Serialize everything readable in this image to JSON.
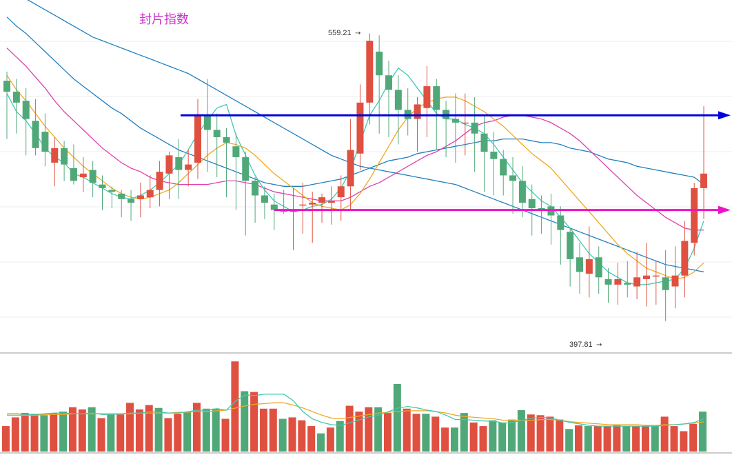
{
  "chart_data": {
    "type": "candlestick",
    "title": "封片指数",
    "high_label": "559.21",
    "low_label": "397.81",
    "y_range": [
      392,
      570
    ],
    "hlines": [
      {
        "value": 518,
        "color": "#0000dd"
      },
      {
        "value": 466,
        "color": "#ee11cc"
      }
    ],
    "colors": {
      "up": "#e05040",
      "down": "#50a878",
      "title": "#cc33cc",
      "ma5": "#40c8b0",
      "ma10": "#f0a820",
      "ma20": "#e040b0",
      "ma30": "#2080c0",
      "ma60": "#2080c0",
      "grid": "#eeeeee",
      "divider": "#999999"
    },
    "candles": [
      [
        537,
        531,
        542,
        505
      ],
      [
        531,
        525,
        538,
        508
      ],
      [
        526,
        516,
        533,
        496
      ],
      [
        515,
        500,
        527,
        496
      ],
      [
        509,
        498,
        519,
        490
      ],
      [
        492,
        500,
        506,
        479
      ],
      [
        500,
        491,
        504,
        482
      ],
      [
        489,
        482,
        502,
        480
      ],
      [
        484,
        486,
        495,
        476
      ],
      [
        488,
        481,
        493,
        473
      ],
      [
        480,
        478,
        485,
        466
      ],
      [
        477,
        476,
        479,
        467
      ],
      [
        475,
        472,
        477,
        462
      ],
      [
        472,
        470,
        477,
        460
      ],
      [
        472,
        474,
        481,
        462
      ],
      [
        473,
        477,
        485,
        467
      ],
      [
        477,
        487,
        493,
        468
      ],
      [
        486,
        496,
        498,
        472
      ],
      [
        495,
        488,
        505,
        472
      ],
      [
        488,
        491,
        499,
        479
      ],
      [
        492,
        518,
        527,
        483
      ],
      [
        518,
        510,
        538,
        487
      ],
      [
        510,
        506,
        519,
        484
      ],
      [
        506,
        503,
        511,
        473
      ],
      [
        501,
        495,
        508,
        466
      ],
      [
        495,
        482,
        498,
        452
      ],
      [
        482,
        474,
        484,
        459
      ],
      [
        474,
        470,
        479,
        461
      ],
      [
        469,
        466,
        475,
        455
      ],
      [
        466,
        465,
        477,
        464
      ],
      [
        465,
        466,
        478,
        444
      ],
      [
        469,
        469,
        481,
        453
      ],
      [
        469,
        470,
        476,
        448
      ],
      [
        470,
        473,
        475,
        459
      ],
      [
        470,
        471,
        479,
        458
      ],
      [
        473,
        479,
        485,
        460
      ],
      [
        479,
        499,
        516,
        466
      ],
      [
        497,
        525,
        535,
        488
      ],
      [
        525,
        559,
        563,
        513
      ],
      [
        553,
        540,
        562,
        508
      ],
      [
        540,
        532,
        548,
        506
      ],
      [
        532,
        521,
        540,
        502
      ],
      [
        521,
        516,
        533,
        507
      ],
      [
        516,
        524,
        528,
        498
      ],
      [
        522,
        534,
        545,
        506
      ],
      [
        534,
        521,
        538,
        499
      ],
      [
        521,
        516,
        526,
        495
      ],
      [
        516,
        514,
        530,
        492
      ],
      [
        514,
        514,
        530,
        496
      ],
      [
        514,
        508,
        528,
        487
      ],
      [
        508,
        498,
        518,
        476
      ],
      [
        498,
        494,
        509,
        474
      ],
      [
        494,
        485,
        499,
        474
      ],
      [
        485,
        482,
        495,
        464
      ],
      [
        482,
        470,
        490,
        462
      ],
      [
        472,
        467,
        480,
        452
      ],
      [
        467,
        466,
        474,
        453
      ],
      [
        468,
        463,
        475,
        447
      ],
      [
        463,
        455,
        468,
        436
      ],
      [
        454,
        439,
        456,
        424
      ],
      [
        440,
        432,
        448,
        420
      ],
      [
        431,
        439,
        457,
        418
      ],
      [
        440,
        429,
        446,
        420
      ],
      [
        428,
        425,
        434,
        415
      ],
      [
        425,
        428,
        437,
        414
      ],
      [
        426,
        425,
        438,
        418
      ],
      [
        424,
        429,
        443,
        417
      ],
      [
        428,
        430,
        448,
        413
      ],
      [
        430,
        430,
        438,
        414
      ],
      [
        429,
        422,
        444,
        405
      ],
      [
        424,
        430,
        446,
        412
      ],
      [
        430,
        449,
        460,
        418
      ],
      [
        448,
        478,
        481,
        441
      ],
      [
        478,
        486,
        523,
        461
      ]
    ],
    "vol": [
      {
        "v": 35,
        "up": true
      },
      {
        "v": 47,
        "up": true
      },
      {
        "v": 53,
        "up": true
      },
      {
        "v": 52,
        "up": true
      },
      {
        "v": 50,
        "up": false
      },
      {
        "v": 53,
        "up": true
      },
      {
        "v": 55,
        "up": false
      },
      {
        "v": 61,
        "up": true
      },
      {
        "v": 58,
        "up": true
      },
      {
        "v": 61,
        "up": false
      },
      {
        "v": 46,
        "up": true
      },
      {
        "v": 51,
        "up": false
      },
      {
        "v": 51,
        "up": true
      },
      {
        "v": 67,
        "up": true
      },
      {
        "v": 58,
        "up": true
      },
      {
        "v": 64,
        "up": true
      },
      {
        "v": 60,
        "up": false
      },
      {
        "v": 46,
        "up": true
      },
      {
        "v": 52,
        "up": true
      },
      {
        "v": 54,
        "up": false
      },
      {
        "v": 67,
        "up": true
      },
      {
        "v": 59,
        "up": false
      },
      {
        "v": 59,
        "up": false
      },
      {
        "v": 45,
        "up": true
      },
      {
        "v": 124,
        "up": true
      },
      {
        "v": 83,
        "up": false
      },
      {
        "v": 82,
        "up": true
      },
      {
        "v": 59,
        "up": true
      },
      {
        "v": 59,
        "up": true
      },
      {
        "v": 45,
        "up": false
      },
      {
        "v": 47,
        "up": true
      },
      {
        "v": 43,
        "up": true
      },
      {
        "v": 35,
        "up": true
      },
      {
        "v": 25,
        "up": false
      },
      {
        "v": 33,
        "up": true
      },
      {
        "v": 42,
        "up": false
      },
      {
        "v": 63,
        "up": true
      },
      {
        "v": 55,
        "up": true
      },
      {
        "v": 61,
        "up": true
      },
      {
        "v": 61,
        "up": false
      },
      {
        "v": 53,
        "up": true
      },
      {
        "v": 93,
        "up": false
      },
      {
        "v": 59,
        "up": true
      },
      {
        "v": 52,
        "up": true
      },
      {
        "v": 52,
        "up": false
      },
      {
        "v": 48,
        "up": true
      },
      {
        "v": 33,
        "up": true
      },
      {
        "v": 33,
        "up": false
      },
      {
        "v": 53,
        "up": false
      },
      {
        "v": 40,
        "up": true
      },
      {
        "v": 35,
        "up": true
      },
      {
        "v": 43,
        "up": false
      },
      {
        "v": 40,
        "up": false
      },
      {
        "v": 44,
        "up": false
      },
      {
        "v": 57,
        "up": false
      },
      {
        "v": 51,
        "up": true
      },
      {
        "v": 50,
        "up": true
      },
      {
        "v": 48,
        "up": true
      },
      {
        "v": 44,
        "up": true
      },
      {
        "v": 31,
        "up": false
      },
      {
        "v": 36,
        "up": true
      },
      {
        "v": 35,
        "up": false
      },
      {
        "v": 35,
        "up": true
      },
      {
        "v": 35,
        "up": true
      },
      {
        "v": 36,
        "up": true
      },
      {
        "v": 35,
        "up": false
      },
      {
        "v": 35,
        "up": true
      },
      {
        "v": 35,
        "up": true
      },
      {
        "v": 35,
        "up": false
      },
      {
        "v": 48,
        "up": true
      },
      {
        "v": 35,
        "up": true
      },
      {
        "v": 28,
        "up": true
      },
      {
        "v": 38,
        "up": true
      },
      {
        "v": 55,
        "up": false
      }
    ],
    "vol_range": [
      0,
      128
    ],
    "ma5": [
      530,
      520,
      515,
      508,
      500,
      495,
      492,
      486,
      484,
      481,
      478,
      475,
      473,
      472,
      474,
      477,
      481,
      486,
      491,
      499,
      508,
      515,
      522,
      524,
      507,
      496,
      485,
      477,
      471,
      468,
      465,
      466,
      468,
      469,
      472,
      478,
      488,
      503,
      518,
      526,
      536,
      544,
      540,
      533,
      526,
      519,
      516,
      516,
      513,
      511,
      508,
      502,
      495,
      488,
      481,
      476,
      471,
      468,
      462,
      456,
      449,
      442,
      437,
      432,
      429,
      426,
      425,
      425,
      426,
      427,
      428,
      434,
      445,
      460
    ],
    "ma10": [
      540,
      532,
      526,
      519,
      512,
      506,
      500,
      495,
      490,
      486,
      482,
      478,
      475,
      473,
      472,
      473,
      475,
      477,
      481,
      486,
      491,
      496,
      500,
      503,
      502,
      500,
      496,
      491,
      486,
      482,
      478,
      474,
      470,
      468,
      467,
      466,
      469,
      475,
      483,
      492,
      501,
      510,
      517,
      522,
      525,
      527,
      528,
      528,
      526,
      523,
      520,
      516,
      512,
      507,
      502,
      497,
      493,
      489,
      483,
      477,
      471,
      465,
      459,
      453,
      447,
      442,
      438,
      434,
      432,
      430,
      428,
      429,
      432,
      437
    ],
    "ma20": [
      555,
      550,
      545,
      539,
      533,
      526,
      520,
      515,
      510,
      505,
      500,
      496,
      492,
      489,
      487,
      484,
      482,
      481,
      480,
      480,
      480,
      480,
      481,
      482,
      482,
      481,
      480,
      478,
      476,
      475,
      474,
      473,
      472,
      471,
      471,
      471,
      473,
      476,
      479,
      481,
      484,
      487,
      490,
      493,
      496,
      498,
      501,
      504,
      508,
      512,
      514,
      515,
      517,
      518,
      518,
      517,
      516,
      514,
      511,
      508,
      504,
      499,
      494,
      489,
      484,
      479,
      474,
      470,
      466,
      462,
      459,
      456,
      455,
      455
    ],
    "ma30": [
      572,
      567,
      563,
      558,
      553,
      548,
      543,
      538,
      534,
      530,
      526,
      522,
      519,
      515,
      511,
      508,
      505,
      502,
      499,
      497,
      495,
      493,
      491,
      489,
      487,
      485,
      483,
      481,
      480,
      479,
      479,
      479,
      480,
      481,
      482,
      483,
      485,
      487,
      489,
      491,
      493,
      494,
      495,
      497,
      498,
      499,
      500,
      501,
      502,
      503,
      504,
      504,
      505,
      505,
      505,
      504,
      503,
      503,
      502,
      500,
      499,
      498,
      496,
      494,
      493,
      492,
      490,
      489,
      488,
      487,
      486,
      485,
      484,
      480
    ],
    "ma60": [
      588,
      585,
      582,
      579,
      576,
      573,
      570,
      567,
      564,
      561,
      559,
      557,
      555,
      553,
      551,
      549,
      547,
      545,
      543,
      541,
      538,
      535,
      532,
      529,
      526,
      523,
      520,
      517,
      514,
      511,
      508,
      505,
      502,
      499,
      496,
      494,
      492,
      490,
      489,
      488,
      487,
      486,
      485,
      484,
      483,
      482,
      481,
      480,
      478,
      476,
      474,
      472,
      470,
      468,
      466,
      464,
      462,
      460,
      458,
      456,
      454,
      452,
      450,
      448,
      446,
      444,
      442,
      440,
      438,
      436,
      435,
      434,
      433,
      432
    ],
    "vol_ma_a": [
      52,
      52,
      51,
      51,
      52,
      53,
      53,
      52,
      52,
      53,
      51,
      51,
      52,
      53,
      53,
      55,
      54,
      53,
      53,
      55,
      57,
      57,
      59,
      57,
      70,
      78,
      77,
      79,
      79,
      79,
      70,
      55,
      45,
      40,
      37,
      36,
      40,
      44,
      48,
      50,
      55,
      60,
      62,
      60,
      57,
      55,
      50,
      44,
      44,
      43,
      42,
      42,
      39,
      40,
      43,
      46,
      47,
      46,
      43,
      40,
      38,
      36,
      35,
      35,
      35,
      35,
      35,
      35,
      35,
      36,
      37,
      38,
      40,
      45
    ],
    "vol_ma_b": [
      50,
      50,
      50,
      50,
      51,
      51,
      51,
      52,
      52,
      52,
      52,
      52,
      52,
      52,
      53,
      53,
      53,
      53,
      54,
      54,
      55,
      55,
      56,
      57,
      60,
      63,
      65,
      66,
      67,
      67,
      64,
      60,
      55,
      50,
      46,
      45,
      47,
      49,
      51,
      53,
      54,
      55,
      56,
      56,
      56,
      55,
      53,
      50,
      48,
      47,
      46,
      45,
      43,
      43,
      43,
      43,
      44,
      44,
      43,
      41,
      40,
      39,
      38,
      37,
      37,
      37,
      37,
      36,
      36,
      37,
      37,
      38,
      39,
      41
    ]
  }
}
